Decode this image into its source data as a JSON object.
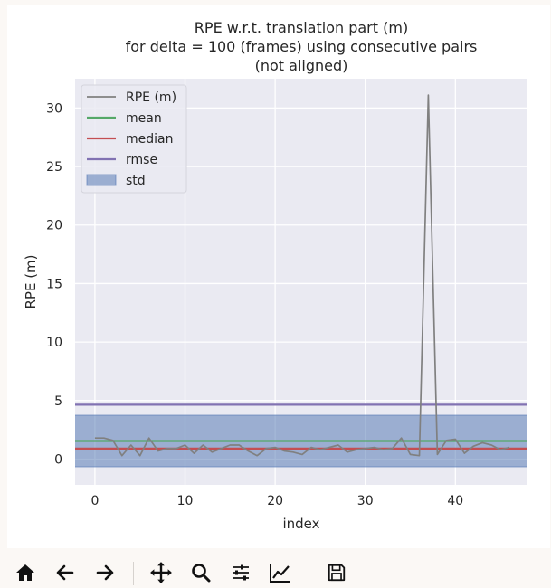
{
  "chart_data": {
    "type": "line",
    "title": [
      "RPE w.r.t. translation part (m)",
      "for delta = 100 (frames) using consecutive pairs",
      "(not aligned)"
    ],
    "xlabel": "index",
    "ylabel": "RPE (m)",
    "xlim": [
      -2.2,
      48
    ],
    "ylim": [
      -2.2,
      32.5
    ],
    "xticks": [
      0,
      10,
      20,
      30,
      40
    ],
    "yticks": [
      0,
      5,
      10,
      15,
      20,
      25,
      30
    ],
    "grid": true,
    "legend_position": "top-left",
    "series": [
      {
        "name": "RPE (m)",
        "color": "#808080",
        "x": [
          0,
          1,
          2,
          3,
          4,
          5,
          6,
          7,
          8,
          9,
          10,
          11,
          12,
          13,
          14,
          15,
          16,
          17,
          18,
          19,
          20,
          21,
          22,
          23,
          24,
          25,
          26,
          27,
          28,
          29,
          30,
          31,
          32,
          33,
          34,
          35,
          36,
          37,
          38,
          39,
          40,
          41,
          42,
          43,
          44,
          45,
          46
        ],
        "values": [
          1.8,
          1.8,
          1.6,
          0.3,
          1.2,
          0.3,
          1.8,
          0.7,
          0.9,
          0.9,
          1.2,
          0.5,
          1.2,
          0.6,
          0.9,
          1.2,
          1.2,
          0.7,
          0.3,
          0.9,
          1.0,
          0.7,
          0.6,
          0.4,
          1.0,
          0.8,
          1.0,
          1.2,
          0.6,
          0.8,
          0.9,
          1.0,
          0.8,
          0.9,
          1.8,
          0.4,
          0.3,
          31.1,
          0.4,
          1.6,
          1.7,
          0.5,
          1.1,
          1.4,
          1.2,
          0.8,
          1.0
        ]
      },
      {
        "name": "mean",
        "color": "#55a868",
        "value": 1.55
      },
      {
        "name": "median",
        "color": "#c44e52",
        "value": 0.9
      },
      {
        "name": "rmse",
        "color": "#8172b2",
        "value": 4.65
      },
      {
        "name": "std",
        "color": "#4c72b0",
        "range": [
          -0.65,
          3.75
        ]
      }
    ]
  },
  "toolbar": {
    "buttons": [
      {
        "name": "home-button",
        "icon": "home-icon"
      },
      {
        "name": "back-button",
        "icon": "arrow-left-icon"
      },
      {
        "name": "forward-button",
        "icon": "arrow-right-icon"
      },
      {
        "name": "pan-button",
        "icon": "move-icon"
      },
      {
        "name": "zoom-button",
        "icon": "magnifier-icon"
      },
      {
        "name": "configure-subplots-button",
        "icon": "sliders-icon"
      },
      {
        "name": "edit-axes-button",
        "icon": "line-chart-icon"
      },
      {
        "name": "save-button",
        "icon": "floppy-disk-icon"
      }
    ]
  }
}
